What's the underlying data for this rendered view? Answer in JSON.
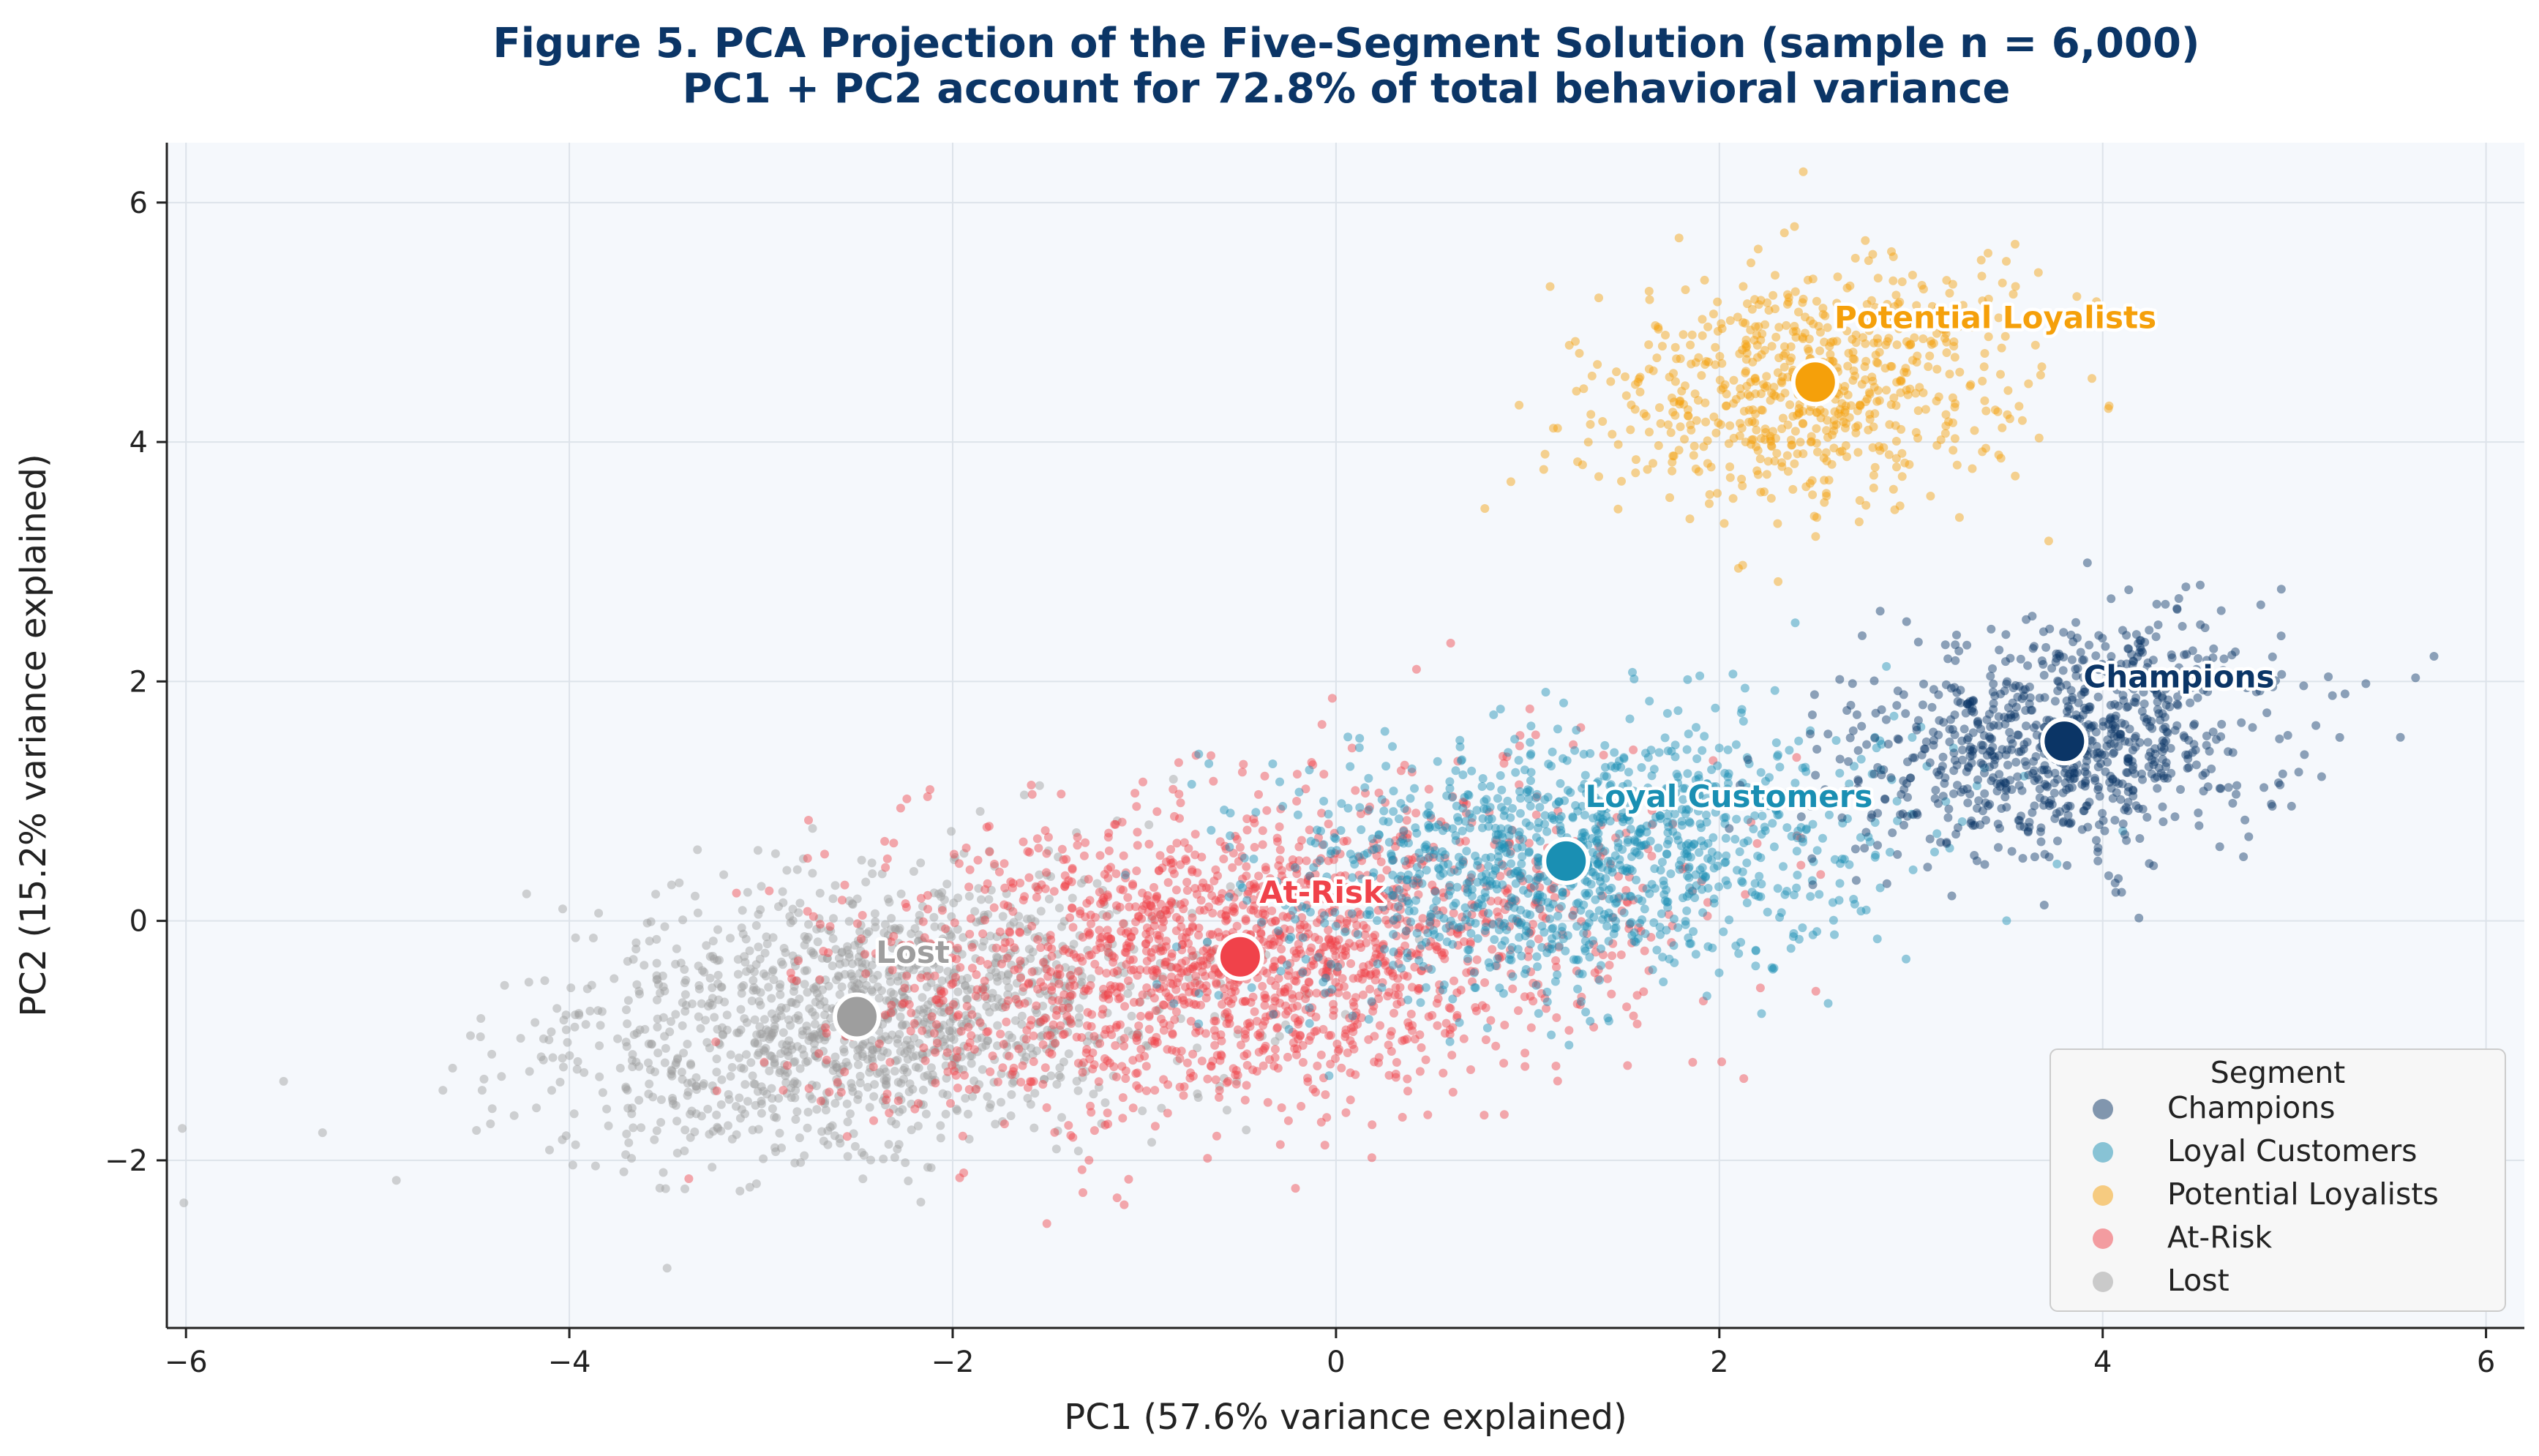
{
  "chart_data": {
    "type": "scatter",
    "title": "Figure 5. PCA Projection of the Five-Segment Solution (sample n = 6,000)",
    "subtitle": "PC1 + PC2 account for 72.8% of total behavioral variance",
    "xlabel": "PC1 (57.6% variance explained)",
    "ylabel": "PC2 (15.2% variance explained)",
    "xlim": [
      -6.1,
      6.2
    ],
    "ylim": [
      -3.4,
      6.5
    ],
    "xticks": [
      -6,
      -4,
      -2,
      0,
      2,
      4,
      6
    ],
    "yticks": [
      -2,
      0,
      2,
      4,
      6
    ],
    "xtick_labels": [
      "−6",
      "−4",
      "−2",
      "0",
      "2",
      "4",
      "6"
    ],
    "ytick_labels": [
      "−2",
      "0",
      "2",
      "4",
      "6"
    ],
    "grid": true,
    "legend_title": "Segment",
    "legend_position": "bottom-right",
    "total_points": 6000,
    "series": [
      {
        "name": "Champions",
        "color": "#0b3566",
        "centroid": [
          3.8,
          1.5
        ],
        "spread": [
          0.55,
          0.5
        ],
        "count": 900,
        "label_offset": [
          0.1,
          0.45
        ]
      },
      {
        "name": "Loyal Customers",
        "color": "#1a8fb3",
        "centroid": [
          1.2,
          0.5
        ],
        "spread": [
          0.8,
          0.55
        ],
        "count": 1200,
        "label_offset": [
          0.1,
          0.45
        ]
      },
      {
        "name": "Potential Loyalists",
        "color": "#f5a00a",
        "centroid": [
          2.5,
          4.5
        ],
        "spread": [
          0.55,
          0.5
        ],
        "count": 700,
        "label_offset": [
          0.1,
          0.45
        ]
      },
      {
        "name": "At-Risk",
        "color": "#f0424a",
        "centroid": [
          -0.5,
          -0.3
        ],
        "spread": [
          1.0,
          0.65
        ],
        "count": 1800,
        "label_offset": [
          0.1,
          0.45
        ]
      },
      {
        "name": "Lost",
        "color": "#9e9e9e",
        "centroid": [
          -2.5,
          -0.8
        ],
        "spread": [
          0.85,
          0.55
        ],
        "count": 1400,
        "label_offset": [
          0.1,
          0.45
        ]
      }
    ]
  }
}
